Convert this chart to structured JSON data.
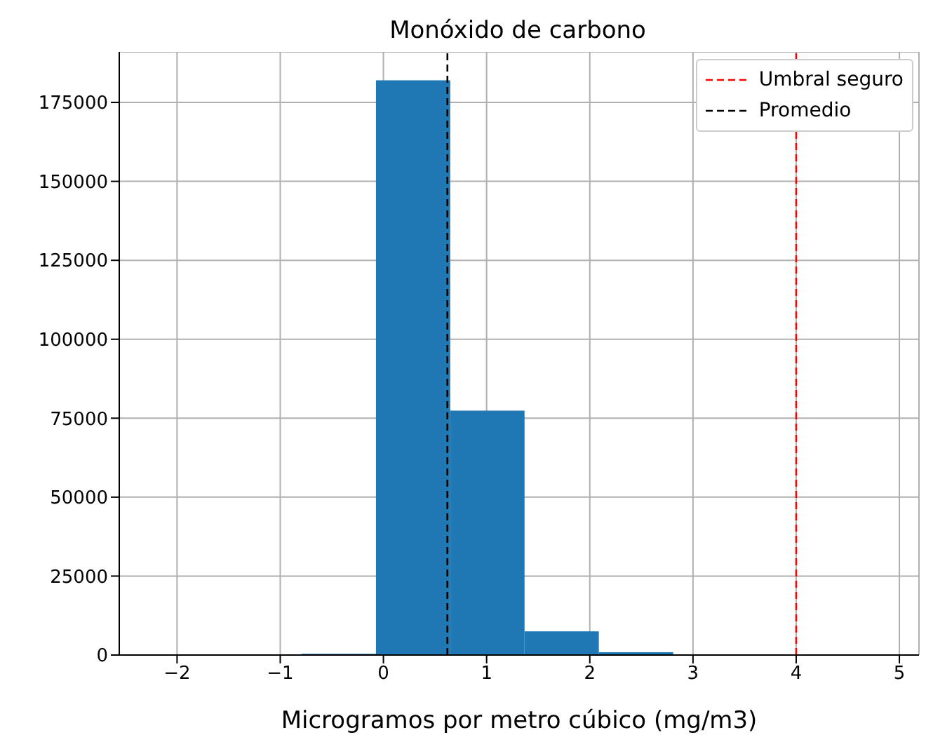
{
  "chart_data": {
    "type": "histogram",
    "title": "Monóxido de carbono",
    "xlabel": "Microgramos por metro cúbico (mg/m3)",
    "bins": [
      -0.79,
      -0.07,
      0.65,
      1.37,
      2.09,
      2.81
    ],
    "values": [
      400,
      182000,
      77400,
      7500,
      900
    ],
    "color": "#1f77b4",
    "xlim": [
      -2.56,
      5.19
    ],
    "xticks": [
      {
        "value": -2,
        "label": "−2"
      },
      {
        "value": -1,
        "label": "−1"
      },
      0,
      1,
      2,
      3,
      4,
      5
    ],
    "ylim": [
      0,
      191000
    ],
    "yticks": [
      0,
      25000,
      50000,
      75000,
      100000,
      125000,
      150000,
      175000
    ],
    "ref_lines": [
      {
        "axis": "x",
        "value": 4,
        "label": "Umbral seguro",
        "color": "#ff0000",
        "line_style": "dashed"
      },
      {
        "axis": "x",
        "value": 0.62,
        "label": "Promedio",
        "color": "#000000",
        "line_style": "dashed"
      }
    ],
    "grid": true,
    "legend": "top right"
  }
}
